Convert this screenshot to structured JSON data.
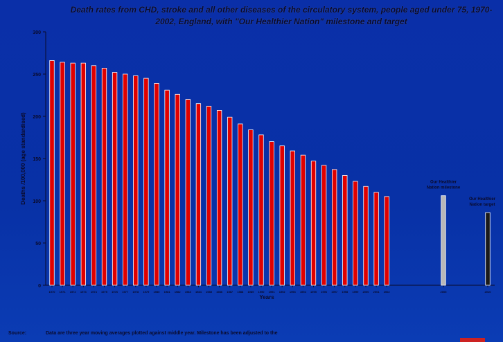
{
  "title": "Death rates from CHD, stroke and all other diseases of the circulatory system, people aged under 75, 1970-2002, England, with \"Our Healthier Nation\" milestone and target",
  "source": {
    "label": "Source:",
    "text": "Data are three year moving averages plotted against middle year. Milestone has been adjusted to the"
  },
  "colors": {
    "background": "#0a2fa8",
    "bars": "#e00000",
    "milestone_bar": "#b8b8b8",
    "target_bar": "#1a1a1a",
    "axis": "#0a0a2a"
  },
  "chart_data": {
    "type": "bar",
    "xlabel": "Years",
    "ylabel": "Deaths /100,000 (age standardised)",
    "ylim": [
      0,
      300
    ],
    "yticks": [
      0,
      50,
      100,
      150,
      200,
      250,
      300
    ],
    "grid": false,
    "categories": [
      "1970",
      "1971",
      "1972",
      "1973",
      "1974",
      "1975",
      "1976",
      "1977",
      "1978",
      "1979",
      "1980",
      "1981",
      "1982",
      "1983",
      "1984",
      "1985",
      "1986",
      "1987",
      "1988",
      "1989",
      "1990",
      "1991",
      "1992",
      "1993",
      "1994",
      "1995",
      "1996",
      "1997",
      "1998",
      "1999",
      "2000",
      "2001",
      "2002"
    ],
    "values": [
      266,
      264,
      263,
      263,
      260,
      257,
      252,
      250,
      248,
      245,
      239,
      231,
      226,
      220,
      215,
      212,
      207,
      199,
      191,
      184,
      178,
      170,
      165,
      159,
      154,
      147,
      142,
      137,
      130,
      123,
      117,
      110,
      105
    ],
    "markers": [
      {
        "label": "Our Healthier Nation milestone",
        "category": "2005",
        "value": 106
      },
      {
        "label": "Our Healthier Nation target",
        "category": "2010",
        "value": 86
      }
    ]
  }
}
